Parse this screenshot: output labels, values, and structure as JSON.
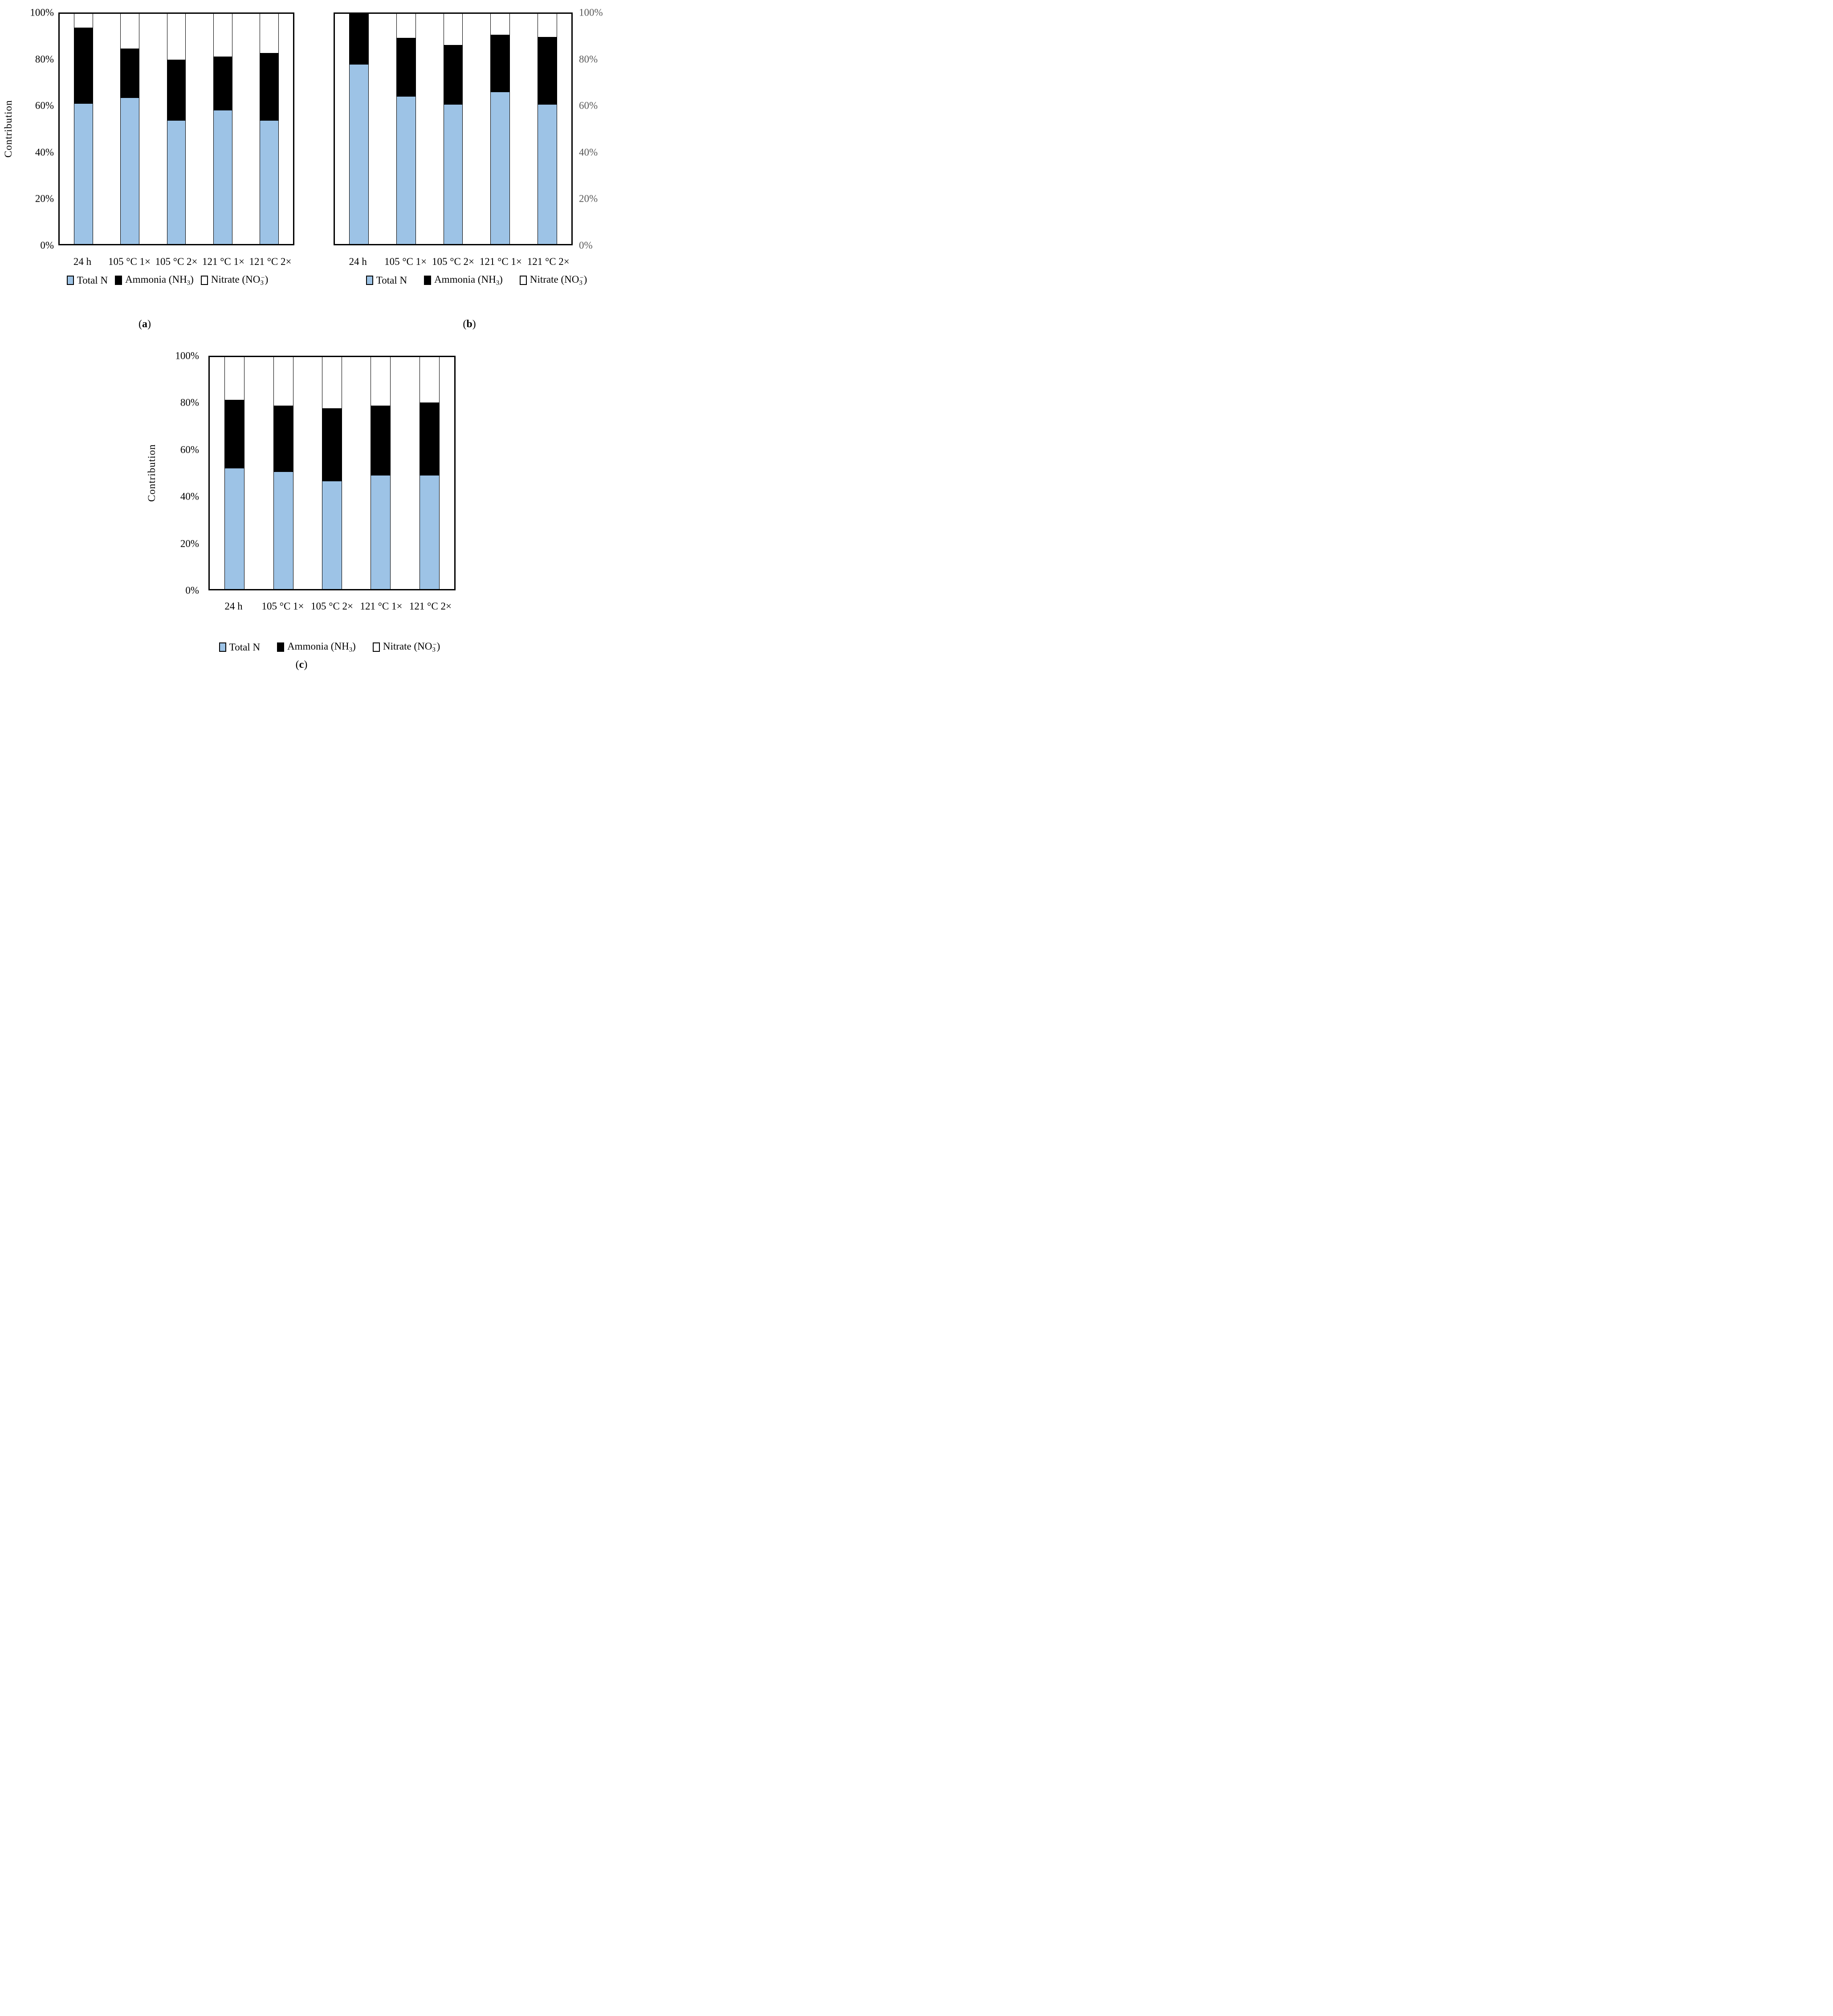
{
  "colors": {
    "total_n_blue": "#9DC3E6",
    "ammonia_black": "#000000",
    "nitrate_white": "#FFFFFF",
    "outline_black": "#000000",
    "right_axis_gray": "#595959"
  },
  "legend": {
    "items": [
      {
        "key": "total-n",
        "color": "#9DC3E6",
        "label_pre": "Total N",
        "label_sub": "",
        "label_sup": "",
        "label_post": ""
      },
      {
        "key": "ammonia",
        "color": "#000000",
        "label_pre": "Ammonia (NH",
        "label_sub": "3",
        "label_sup": "",
        "label_post": ")"
      },
      {
        "key": "nitrate",
        "color": "#FFFFFF",
        "label_pre": "Nitrate (NO",
        "label_sub": "3",
        "label_sup": "−",
        "label_post": ")"
      }
    ]
  },
  "chart_data": [
    {
      "id": "a",
      "type": "bar",
      "subtype": "stacked-100-percent",
      "caption_open": "(",
      "caption_letter": "a",
      "caption_close": ")",
      "ylabel": "Contribution",
      "y_side": "left",
      "y_tick_color": "#000000",
      "y_ticks": [
        "100%",
        "80%",
        "60%",
        "40%",
        "20%",
        "0%"
      ],
      "ylim": [
        0,
        100
      ],
      "grid": false,
      "legend_position": "bottom",
      "categories": [
        "24 h",
        "105 °C 1×",
        "105 °C 2×",
        "121 °C 1×",
        "121 °C 2×"
      ],
      "series": [
        {
          "name": "Total N",
          "color": "#9DC3E6",
          "values": [
            61,
            63.5,
            53.5,
            58,
            53.5
          ]
        },
        {
          "name": "Ammonia (NH3)",
          "color": "#000000",
          "values": [
            33,
            21.5,
            26.5,
            23.5,
            29.5
          ]
        },
        {
          "name": "Nitrate (NO3-)",
          "color": "#FFFFFF",
          "values": [
            6,
            15,
            20,
            18.5,
            17
          ]
        }
      ]
    },
    {
      "id": "b",
      "type": "bar",
      "subtype": "stacked-100-percent",
      "caption_open": "(",
      "caption_letter": "b",
      "caption_close": ")",
      "ylabel": "",
      "y_side": "right",
      "y_tick_color": "#595959",
      "y_ticks": [
        "100%",
        "80%",
        "60%",
        "40%",
        "20%",
        "0%"
      ],
      "ylim": [
        0,
        100
      ],
      "grid": false,
      "legend_position": "bottom",
      "categories": [
        "24 h",
        "105 °C 1×",
        "105 °C 2×",
        "121 °C 1×",
        "121 °C 2×"
      ],
      "series": [
        {
          "name": "Total N",
          "color": "#9DC3E6",
          "values": [
            78,
            64,
            60.5,
            66,
            60.5
          ]
        },
        {
          "name": "Ammonia (NH3)",
          "color": "#000000",
          "values": [
            22,
            25.5,
            26,
            25,
            29.5
          ]
        },
        {
          "name": "Nitrate (NO3-)",
          "color": "#FFFFFF",
          "values": [
            0,
            10.5,
            13.5,
            9,
            10
          ]
        }
      ]
    },
    {
      "id": "c",
      "type": "bar",
      "subtype": "stacked-100-percent",
      "caption_open": "(",
      "caption_letter": "c",
      "caption_close": ")",
      "ylabel": "Contribution",
      "y_side": "left",
      "y_tick_color": "#000000",
      "y_ticks": [
        "100%",
        "80%",
        "60%",
        "40%",
        "20%",
        "0%"
      ],
      "ylim": [
        0,
        100
      ],
      "grid": false,
      "legend_position": "bottom",
      "categories": [
        "24 h",
        "105 °C 1×",
        "105 °C 2×",
        "121 °C 1×",
        "121 °C 2×"
      ],
      "series": [
        {
          "name": "Total N",
          "color": "#9DC3E6",
          "values": [
            52,
            50.5,
            46.5,
            49,
            49
          ]
        },
        {
          "name": "Ammonia (NH3)",
          "color": "#000000",
          "values": [
            29.5,
            28.5,
            31.5,
            30,
            31.5
          ]
        },
        {
          "name": "Nitrate (NO3-)",
          "color": "#FFFFFF",
          "values": [
            18.5,
            21,
            22,
            21,
            19.5
          ]
        }
      ]
    }
  ]
}
